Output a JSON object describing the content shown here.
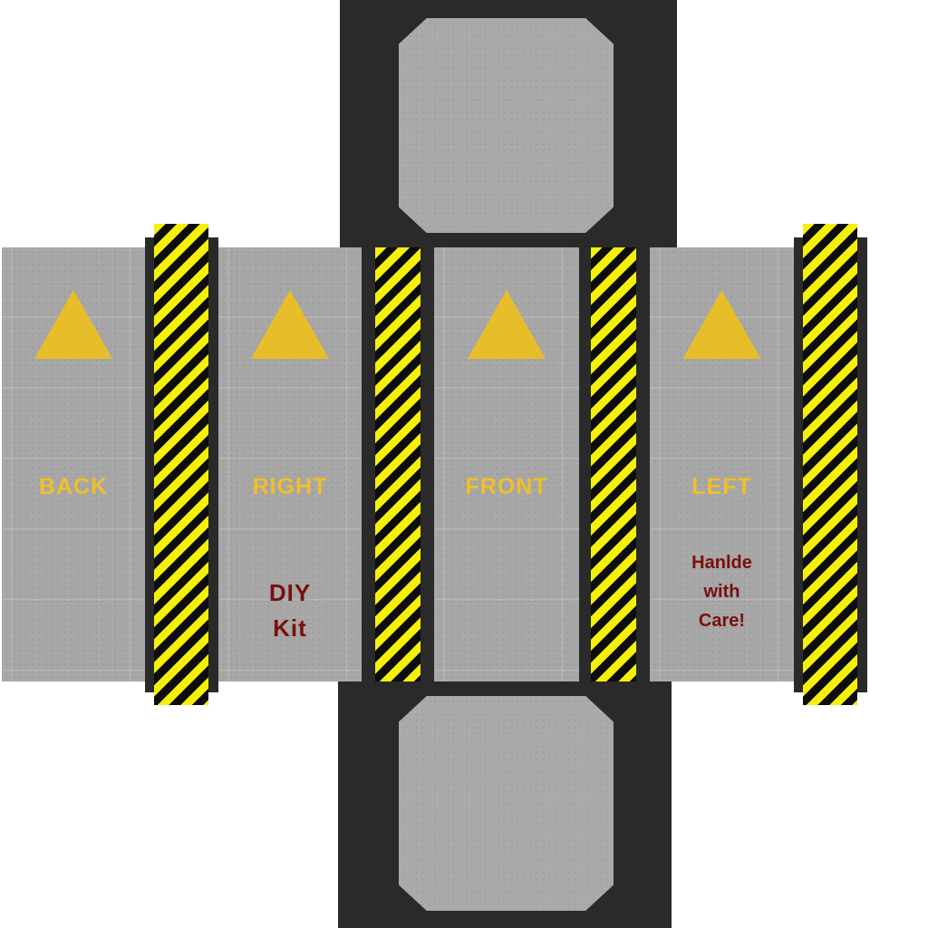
{
  "faces": {
    "back": {
      "label": "BACK"
    },
    "right": {
      "label": "RIGHT",
      "note_line1": "DIY",
      "note_line2": "Kit"
    },
    "front": {
      "label": "FRONT"
    },
    "left": {
      "label": "LEFT",
      "note_line1": "Hanlde",
      "note_line2": "with",
      "note_line3": "Care!"
    }
  },
  "icons": {
    "face_symbol": "warning-triangle-icon",
    "strap_pattern": "hazard-stripes"
  },
  "colors": {
    "panel_gray": "#a6a6a6",
    "frame_dark": "#2a2a2a",
    "label_yellow": "#f0bf2a",
    "triangle_yellow": "#e8bd2a",
    "note_red": "#7a0e0e",
    "stripe_yellow": "#f5f00a",
    "stripe_black": "#0d0d0d"
  }
}
